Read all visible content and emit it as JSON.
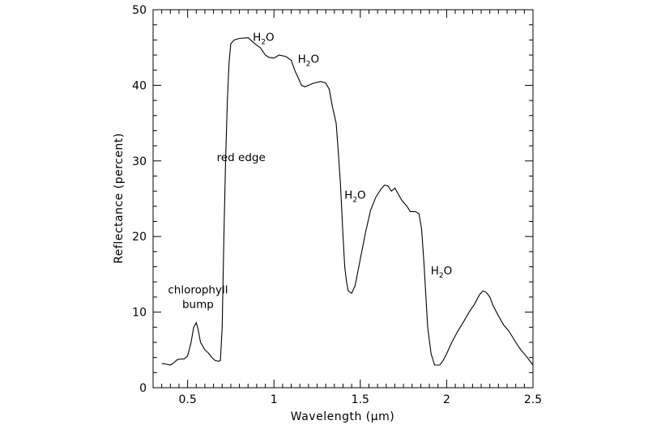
{
  "chart_data": {
    "type": "line",
    "title": "",
    "xlabel": "Wavelength (μm)",
    "ylabel": "Reflectance (percent)",
    "xlim": [
      0.3,
      2.5
    ],
    "ylim": [
      0,
      50
    ],
    "grid": false,
    "x_ticks": [
      0.5,
      1,
      1.5,
      2,
      2.5
    ],
    "x_tick_labels": [
      "0.5",
      "1",
      "1.5",
      "2",
      "2.5"
    ],
    "y_ticks": [
      0,
      10,
      20,
      30,
      40,
      50
    ],
    "y_tick_labels": [
      "0",
      "10",
      "20",
      "30",
      "40",
      "50"
    ],
    "series": [
      {
        "values": [
          [
            0.35,
            3.2
          ],
          [
            0.38,
            3.1
          ],
          [
            0.4,
            3.0
          ],
          [
            0.42,
            3.3
          ],
          [
            0.44,
            3.7
          ],
          [
            0.46,
            3.8
          ],
          [
            0.48,
            3.8
          ],
          [
            0.5,
            4.2
          ],
          [
            0.52,
            6.0
          ],
          [
            0.535,
            8.0
          ],
          [
            0.55,
            8.6
          ],
          [
            0.56,
            7.8
          ],
          [
            0.575,
            6.0
          ],
          [
            0.6,
            5.0
          ],
          [
            0.62,
            4.6
          ],
          [
            0.64,
            4.0
          ],
          [
            0.66,
            3.6
          ],
          [
            0.68,
            3.5
          ],
          [
            0.69,
            3.6
          ],
          [
            0.7,
            8.0
          ],
          [
            0.71,
            20.0
          ],
          [
            0.72,
            30.0
          ],
          [
            0.73,
            38.0
          ],
          [
            0.74,
            43.0
          ],
          [
            0.75,
            45.5
          ],
          [
            0.77,
            46.0
          ],
          [
            0.8,
            46.2
          ],
          [
            0.85,
            46.3
          ],
          [
            0.88,
            45.7
          ],
          [
            0.9,
            45.3
          ],
          [
            0.92,
            45.0
          ],
          [
            0.95,
            44.0
          ],
          [
            0.97,
            43.7
          ],
          [
            1.0,
            43.6
          ],
          [
            1.03,
            44.0
          ],
          [
            1.07,
            43.8
          ],
          [
            1.1,
            43.3
          ],
          [
            1.12,
            42.0
          ],
          [
            1.14,
            41.0
          ],
          [
            1.16,
            40.0
          ],
          [
            1.18,
            39.8
          ],
          [
            1.2,
            40.0
          ],
          [
            1.23,
            40.3
          ],
          [
            1.27,
            40.5
          ],
          [
            1.3,
            40.3
          ],
          [
            1.32,
            39.5
          ],
          [
            1.34,
            37.0
          ],
          [
            1.36,
            35.0
          ],
          [
            1.37,
            32.0
          ],
          [
            1.385,
            27.0
          ],
          [
            1.4,
            20.0
          ],
          [
            1.41,
            16.0
          ],
          [
            1.42,
            14.0
          ],
          [
            1.43,
            12.8
          ],
          [
            1.45,
            12.5
          ],
          [
            1.47,
            13.5
          ],
          [
            1.5,
            17.0
          ],
          [
            1.53,
            20.5
          ],
          [
            1.56,
            23.5
          ],
          [
            1.59,
            25.2
          ],
          [
            1.62,
            26.3
          ],
          [
            1.64,
            26.8
          ],
          [
            1.66,
            26.7
          ],
          [
            1.68,
            26.0
          ],
          [
            1.7,
            26.4
          ],
          [
            1.72,
            25.6
          ],
          [
            1.74,
            24.8
          ],
          [
            1.77,
            24.0
          ],
          [
            1.79,
            23.3
          ],
          [
            1.82,
            23.3
          ],
          [
            1.84,
            23.0
          ],
          [
            1.855,
            21.0
          ],
          [
            1.87,
            16.0
          ],
          [
            1.89,
            8.0
          ],
          [
            1.91,
            4.5
          ],
          [
            1.93,
            3.0
          ],
          [
            1.96,
            3.0
          ],
          [
            1.98,
            3.6
          ],
          [
            2.0,
            4.5
          ],
          [
            2.03,
            6.0
          ],
          [
            2.06,
            7.3
          ],
          [
            2.1,
            8.8
          ],
          [
            2.13,
            10.0
          ],
          [
            2.16,
            11.0
          ],
          [
            2.19,
            12.3
          ],
          [
            2.21,
            12.8
          ],
          [
            2.23,
            12.6
          ],
          [
            2.25,
            12.0
          ],
          [
            2.27,
            10.8
          ],
          [
            2.3,
            9.5
          ],
          [
            2.33,
            8.3
          ],
          [
            2.36,
            7.5
          ],
          [
            2.4,
            6.0
          ],
          [
            2.43,
            5.0
          ],
          [
            2.46,
            4.2
          ],
          [
            2.5,
            3.0
          ]
        ]
      }
    ],
    "annotations": [
      {
        "id": "chlorophyll",
        "lines": [
          "chlorophyll",
          "bump"
        ],
        "x": 0.56,
        "y": 11.0
      },
      {
        "id": "red-edge",
        "text": "red edge",
        "x": 0.81,
        "y": 30.0
      },
      {
        "id": "h2o-1",
        "main": "H",
        "sub": "2",
        "tail": "O",
        "x": 0.94,
        "y": 45.9
      },
      {
        "id": "h2o-2",
        "main": "H",
        "sub": "2",
        "tail": "O",
        "x": 1.2,
        "y": 43.0
      },
      {
        "id": "h2o-3",
        "main": "H",
        "sub": "2",
        "tail": "O",
        "x": 1.47,
        "y": 25.0
      },
      {
        "id": "h2o-4",
        "main": "H",
        "sub": "2",
        "tail": "O",
        "x": 1.97,
        "y": 15.0
      }
    ]
  }
}
